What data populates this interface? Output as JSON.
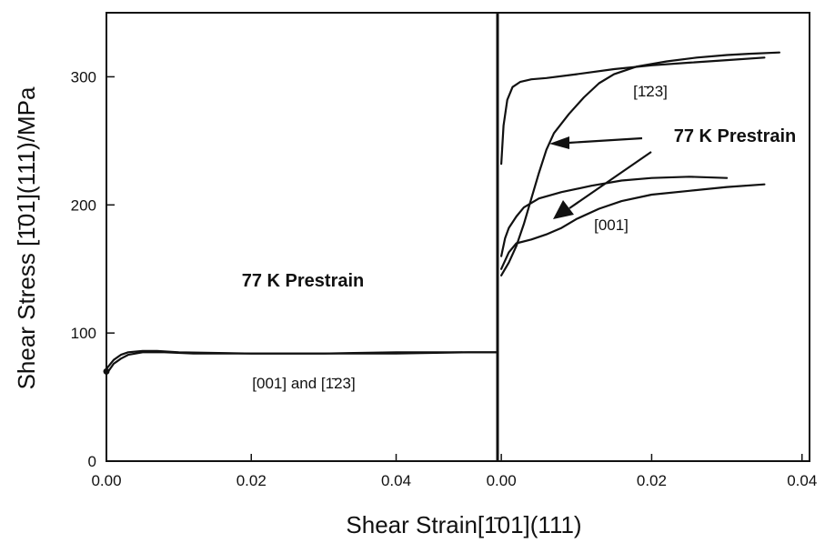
{
  "chart_data": {
    "type": "line",
    "xlabel": "Shear Strain[1̄01](111)",
    "ylabel": "Shear Stress [1̄01](111)/MPa",
    "ylim": [
      0,
      350
    ],
    "yticks": [
      "0",
      "100",
      "200",
      "300"
    ],
    "panels": [
      {
        "xlim": [
          0.0,
          0.054
        ],
        "xticks": [
          "0.00",
          "0.02",
          "0.04"
        ],
        "annotation": "77 K Prestrain",
        "curve_label": "[001] and [1̄23]",
        "series": [
          {
            "x": [
              0.0,
              0.001,
              0.002,
              0.003,
              0.004,
              0.005,
              0.006,
              0.008,
              0.012,
              0.02,
              0.03,
              0.04,
              0.05,
              0.054
            ],
            "y": [
              68,
              76,
              80,
              83,
              84,
              85,
              85,
              85,
              84,
              84,
              84,
              85,
              85,
              85
            ]
          },
          {
            "x": [
              0.0,
              0.001,
              0.002,
              0.003,
              0.005,
              0.007,
              0.01,
              0.02,
              0.03,
              0.04,
              0.05,
              0.054
            ],
            "y": [
              72,
              79,
              83,
              85,
              86,
              86,
              85,
              84,
              84,
              84,
              85,
              85
            ]
          }
        ]
      },
      {
        "xlim": [
          -0.0005,
          0.041
        ],
        "xticks": [
          "0.00",
          "0.02",
          "0.04"
        ],
        "annotation": "77 K Prestrain",
        "curve_labels": [
          "[1̄23]",
          "[001]"
        ],
        "series": [
          {
            "x": [
              0.0,
              0.0003,
              0.0008,
              0.0015,
              0.0025,
              0.004,
              0.006,
              0.01,
              0.015,
              0.02,
              0.025,
              0.03,
              0.035
            ],
            "y": [
              232,
              262,
              282,
              292,
              296,
              298,
              299,
              302,
              306,
              309,
              311,
              313,
              315
            ]
          },
          {
            "x": [
              0.0,
              0.001,
              0.002,
              0.003,
              0.004,
              0.005,
              0.006,
              0.007,
              0.009,
              0.011,
              0.013,
              0.015,
              0.018,
              0.022,
              0.026,
              0.03,
              0.033,
              0.037
            ],
            "y": [
              145,
              155,
              168,
              185,
              205,
              225,
              243,
              256,
              271,
              284,
              295,
              302,
              308,
              312,
              315,
              317,
              318,
              319
            ]
          },
          {
            "x": [
              0.0,
              0.0005,
              0.001,
              0.002,
              0.003,
              0.005,
              0.008,
              0.012,
              0.016,
              0.02,
              0.025,
              0.03
            ],
            "y": [
              160,
              174,
              182,
              191,
              198,
              205,
              210,
              215,
              219,
              221,
              222,
              221
            ]
          },
          {
            "x": [
              0.0,
              0.001,
              0.002,
              0.004,
              0.006,
              0.008,
              0.01,
              0.013,
              0.016,
              0.02,
              0.025,
              0.03,
              0.035
            ],
            "y": [
              150,
              163,
              170,
              173,
              177,
              182,
              189,
              197,
              203,
              208,
              211,
              214,
              216
            ]
          }
        ]
      }
    ]
  }
}
